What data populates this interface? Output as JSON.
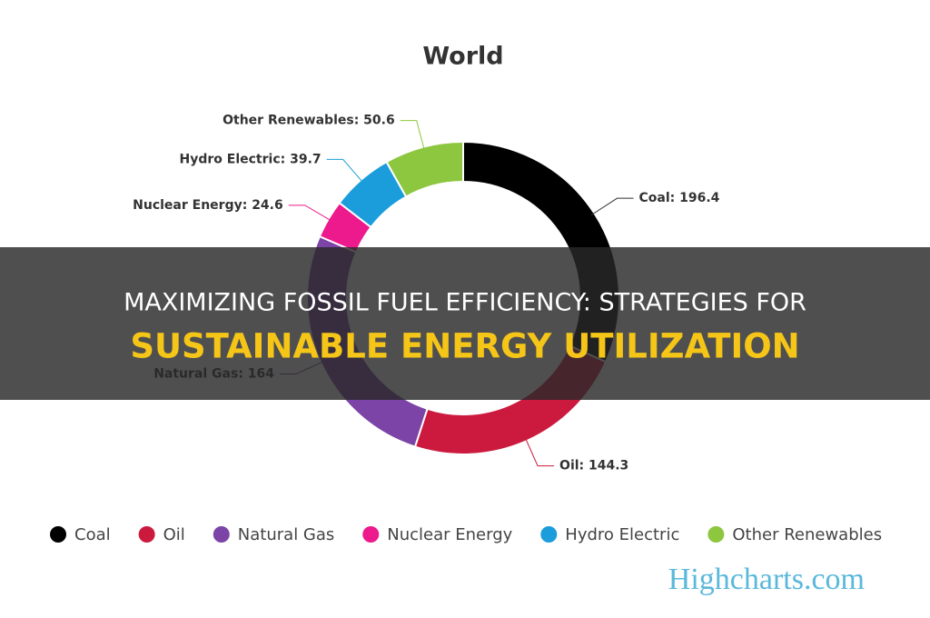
{
  "chart_data": {
    "type": "donut",
    "title": "World",
    "categories": [
      "Coal",
      "Oil",
      "Natural Gas",
      "Nuclear Energy",
      "Hydro Electric",
      "Other Renewables"
    ],
    "values": [
      196.4,
      144.3,
      164,
      24.6,
      39.7,
      50.6
    ],
    "value_labels": [
      "Coal: 196.4",
      "Oil: 144.3",
      "Natural Gas: 164",
      "Nuclear Energy: 24.6",
      "Hydro Electric: 39.7",
      "Other Renewables: 50.6"
    ],
    "colors": [
      "#000000",
      "#cc1a3f",
      "#7b44a6",
      "#ec1a8c",
      "#1b9ddb",
      "#8dc63f"
    ],
    "legend": "bottom",
    "credits": "Highcharts.com"
  },
  "banner": {
    "line1": "MAXIMIZING FOSSIL FUEL EFFICIENCY: STRATEGIES FOR",
    "line2": "SUSTAINABLE ENERGY UTILIZATION"
  }
}
